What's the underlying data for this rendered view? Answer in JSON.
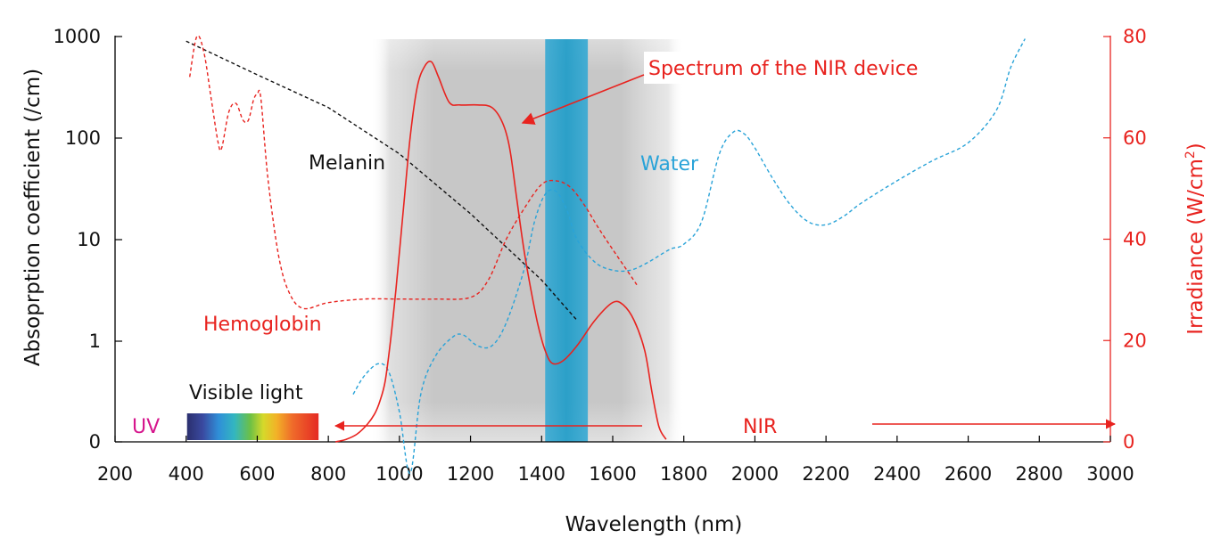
{
  "colors": {
    "axis_left": "#000000",
    "axis_right": "#e8231f",
    "red": "#e8231f",
    "blue": "#29a3d8",
    "black": "#111111",
    "magenta": "#d6168d",
    "band_gray": "#b8b8b8",
    "band_blue": "#1e9cc8"
  },
  "chart_data": {
    "type": "line",
    "x_axis": {
      "label": "Wavelength (nm)",
      "min": 200,
      "max": 3000,
      "ticks": [
        200,
        400,
        600,
        800,
        1000,
        1200,
        1400,
        1600,
        1800,
        2000,
        2200,
        2400,
        2600,
        2800,
        3000
      ]
    },
    "y_left_axis": {
      "label": "Absoprption coefficient (/cm)",
      "scale": "log",
      "tick_values": [
        0,
        1,
        10,
        100,
        1000
      ],
      "tick_labels": [
        "0",
        "1",
        "10",
        "100",
        "1000"
      ]
    },
    "y_right_axis": {
      "label_main": "Irradiance (W/cm",
      "label_sup": "2",
      "label_end": ")",
      "min": 0,
      "max": 80,
      "ticks": [
        0,
        20,
        40,
        60,
        80
      ]
    },
    "shaded_regions": [
      {
        "name": "NIR window",
        "x_start": 920,
        "x_end": 1800,
        "color": "gray"
      },
      {
        "name": "water absorption band",
        "x_start": 1410,
        "x_end": 1530,
        "color": "blue"
      }
    ],
    "series": [
      {
        "name": "Melanin",
        "axis": "left",
        "style": "dashed",
        "color": "black",
        "points": [
          [
            400,
            900
          ],
          [
            600,
            420
          ],
          [
            800,
            200
          ],
          [
            1000,
            70
          ],
          [
            1200,
            18
          ],
          [
            1400,
            4
          ],
          [
            1500,
            1.6
          ]
        ]
      },
      {
        "name": "Hemoglobin",
        "axis": "left",
        "style": "dashed",
        "color": "red",
        "points": [
          [
            410,
            400
          ],
          [
            430,
            1000
          ],
          [
            450,
            700
          ],
          [
            470,
            250
          ],
          [
            490,
            90
          ],
          [
            500,
            80
          ],
          [
            520,
            180
          ],
          [
            540,
            220
          ],
          [
            560,
            150
          ],
          [
            575,
            150
          ],
          [
            590,
            240
          ],
          [
            600,
            270
          ],
          [
            610,
            250
          ],
          [
            630,
            40
          ],
          [
            660,
            7
          ],
          [
            690,
            3
          ],
          [
            730,
            2.1
          ],
          [
            800,
            2.4
          ],
          [
            900,
            2.6
          ],
          [
            1000,
            2.6
          ],
          [
            1100,
            2.6
          ],
          [
            1200,
            2.7
          ],
          [
            1250,
            4
          ],
          [
            1300,
            10
          ],
          [
            1350,
            20
          ],
          [
            1400,
            35
          ],
          [
            1440,
            38
          ],
          [
            1480,
            33
          ],
          [
            1520,
            22
          ],
          [
            1560,
            13
          ],
          [
            1600,
            8
          ],
          [
            1640,
            5
          ],
          [
            1670,
            3.5
          ]
        ]
      },
      {
        "name": "Water",
        "axis": "left",
        "style": "dashed",
        "color": "blue",
        "points": [
          [
            870,
            0.3
          ],
          [
            900,
            0.45
          ],
          [
            940,
            0.6
          ],
          [
            970,
            0.5
          ],
          [
            1000,
            0.2
          ],
          [
            1030,
            0.05
          ],
          [
            1060,
            0.3
          ],
          [
            1100,
            0.7
          ],
          [
            1150,
            1.1
          ],
          [
            1180,
            1.15
          ],
          [
            1220,
            0.9
          ],
          [
            1260,
            0.9
          ],
          [
            1300,
            1.5
          ],
          [
            1350,
            5
          ],
          [
            1380,
            15
          ],
          [
            1410,
            28
          ],
          [
            1440,
            30
          ],
          [
            1470,
            20
          ],
          [
            1500,
            10
          ],
          [
            1550,
            6
          ],
          [
            1600,
            5
          ],
          [
            1650,
            5
          ],
          [
            1700,
            6
          ],
          [
            1760,
            8
          ],
          [
            1800,
            9
          ],
          [
            1850,
            15
          ],
          [
            1900,
            70
          ],
          [
            1940,
            115
          ],
          [
            1970,
            110
          ],
          [
            2000,
            80
          ],
          [
            2050,
            40
          ],
          [
            2100,
            22
          ],
          [
            2150,
            15
          ],
          [
            2200,
            14
          ],
          [
            2250,
            17
          ],
          [
            2300,
            23
          ],
          [
            2400,
            38
          ],
          [
            2500,
            60
          ],
          [
            2600,
            90
          ],
          [
            2680,
            190
          ],
          [
            2720,
            500
          ],
          [
            2760,
            950
          ]
        ]
      },
      {
        "name": "Spectrum of the NIR device",
        "axis": "right",
        "style": "solid",
        "color": "red",
        "points": [
          [
            820,
            0
          ],
          [
            850,
            0.5
          ],
          [
            880,
            1.5
          ],
          [
            910,
            3.5
          ],
          [
            930,
            5.5
          ],
          [
            945,
            8
          ],
          [
            960,
            12
          ],
          [
            975,
            20
          ],
          [
            990,
            30
          ],
          [
            1010,
            45
          ],
          [
            1030,
            60
          ],
          [
            1050,
            70
          ],
          [
            1070,
            74
          ],
          [
            1090,
            75
          ],
          [
            1110,
            72
          ],
          [
            1140,
            67
          ],
          [
            1170,
            66.5
          ],
          [
            1220,
            66.5
          ],
          [
            1260,
            66
          ],
          [
            1290,
            63
          ],
          [
            1310,
            58
          ],
          [
            1330,
            48
          ],
          [
            1350,
            38
          ],
          [
            1370,
            30
          ],
          [
            1390,
            23
          ],
          [
            1410,
            18
          ],
          [
            1430,
            15.5
          ],
          [
            1460,
            16
          ],
          [
            1500,
            19
          ],
          [
            1550,
            24
          ],
          [
            1600,
            27.5
          ],
          [
            1630,
            27
          ],
          [
            1660,
            24
          ],
          [
            1690,
            18
          ],
          [
            1710,
            10
          ],
          [
            1730,
            3
          ],
          [
            1750,
            0.5
          ]
        ]
      }
    ],
    "annotations": [
      {
        "text": "Spectrum of the NIR device",
        "color": "red",
        "boxed": true
      },
      {
        "text": "Melanin",
        "color": "black"
      },
      {
        "text": "Water",
        "color": "blue"
      },
      {
        "text": "Hemoglobin",
        "color": "red"
      },
      {
        "text": "Visible light",
        "color": "black"
      },
      {
        "text": "UV",
        "color": "magenta"
      },
      {
        "text": "NIR",
        "color": "red"
      }
    ],
    "spectrum_bar": {
      "x_start": 400,
      "x_end": 770
    }
  }
}
